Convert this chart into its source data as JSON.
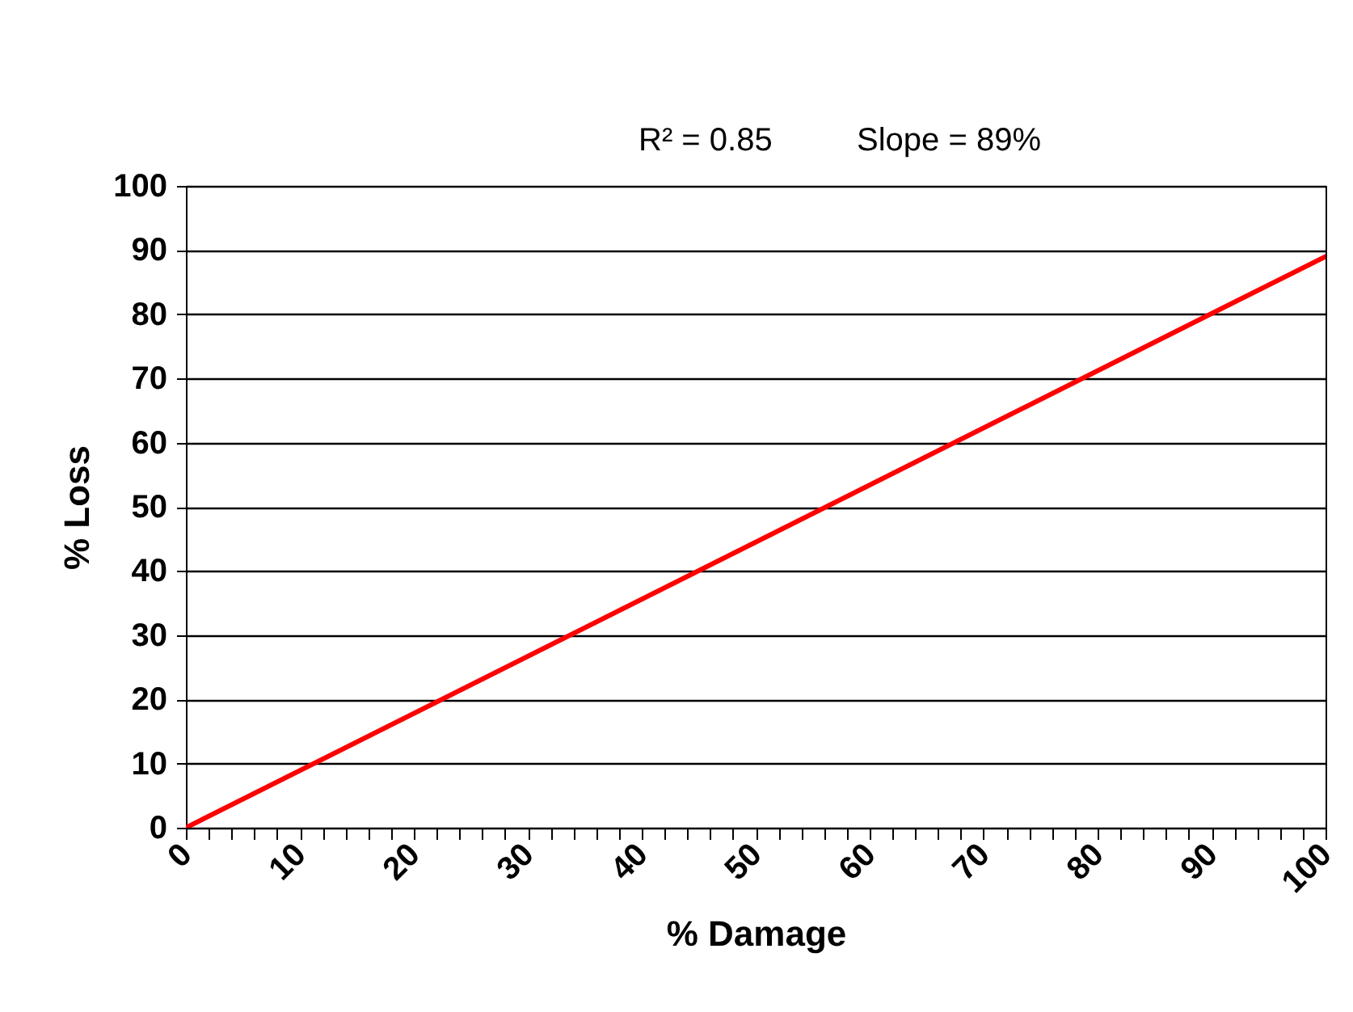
{
  "chart_data": {
    "type": "line",
    "xlabel": "% Damage",
    "ylabel": "% Loss",
    "annotations": [
      "R² = 0.85",
      "Slope = 89%"
    ],
    "x": [
      0,
      100
    ],
    "series": [
      {
        "color": "#ff0000",
        "values": [
          0,
          89
        ]
      }
    ],
    "xlim": [
      0,
      100
    ],
    "xticks": [
      0,
      {
        "value": 2,
        "label": null
      },
      {
        "value": 4,
        "label": null
      },
      {
        "value": 6,
        "label": null
      },
      {
        "value": 8,
        "label": null
      },
      10,
      {
        "value": 12,
        "label": null
      },
      {
        "value": 14,
        "label": null
      },
      {
        "value": 16,
        "label": null
      },
      {
        "value": 18,
        "label": null
      },
      20,
      {
        "value": 22,
        "label": null
      },
      {
        "value": 24,
        "label": null
      },
      {
        "value": 26,
        "label": null
      },
      {
        "value": 28,
        "label": null
      },
      30,
      {
        "value": 32,
        "label": null
      },
      {
        "value": 34,
        "label": null
      },
      {
        "value": 36,
        "label": null
      },
      {
        "value": 38,
        "label": null
      },
      40,
      {
        "value": 42,
        "label": null
      },
      {
        "value": 44,
        "label": null
      },
      {
        "value": 46,
        "label": null
      },
      {
        "value": 48,
        "label": null
      },
      50,
      {
        "value": 52,
        "label": null
      },
      {
        "value": 54,
        "label": null
      },
      {
        "value": 56,
        "label": null
      },
      {
        "value": 58,
        "label": null
      },
      60,
      {
        "value": 62,
        "label": null
      },
      {
        "value": 64,
        "label": null
      },
      {
        "value": 66,
        "label": null
      },
      {
        "value": 68,
        "label": null
      },
      70,
      {
        "value": 72,
        "label": null
      },
      {
        "value": 74,
        "label": null
      },
      {
        "value": 76,
        "label": null
      },
      {
        "value": 78,
        "label": null
      },
      80,
      {
        "value": 82,
        "label": null
      },
      {
        "value": 84,
        "label": null
      },
      {
        "value": 86,
        "label": null
      },
      {
        "value": 88,
        "label": null
      },
      90,
      {
        "value": 92,
        "label": null
      },
      {
        "value": 94,
        "label": null
      },
      {
        "value": 96,
        "label": null
      },
      {
        "value": 98,
        "label": null
      },
      100
    ],
    "ylim": [
      0,
      100
    ],
    "yticks": [
      0,
      10,
      20,
      30,
      40,
      50,
      60,
      70,
      80,
      90,
      100
    ],
    "grid": "y",
    "line_style": "solid",
    "marker": "none"
  }
}
